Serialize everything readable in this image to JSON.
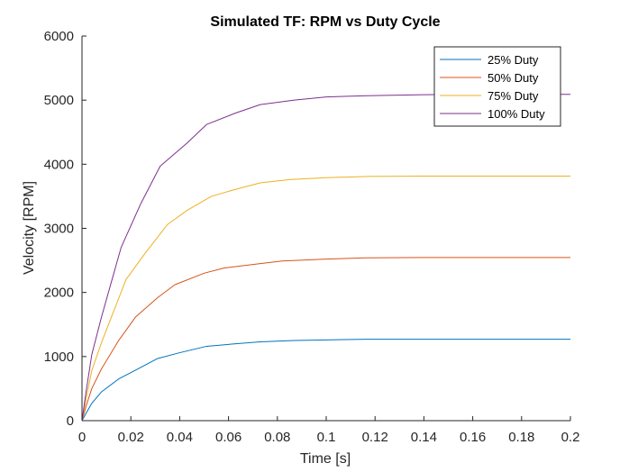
{
  "chart_data": {
    "type": "line",
    "title": "Simulated TF: RPM vs Duty Cycle",
    "xlabel": "Time [s]",
    "ylabel": "Velocity [RPM]",
    "xlim": [
      0,
      0.2
    ],
    "ylim": [
      0,
      6000
    ],
    "x_ticks": [
      0,
      0.02,
      0.04,
      0.06,
      0.08,
      0.1,
      0.12,
      0.14,
      0.16,
      0.18,
      0.2
    ],
    "x_tick_labels": [
      "0",
      "0.02",
      "0.04",
      "0.06",
      "0.08",
      "0.1",
      "0.12",
      "0.14",
      "0.16",
      "0.18",
      "0.2"
    ],
    "y_ticks": [
      0,
      1000,
      2000,
      3000,
      4000,
      5000,
      6000
    ],
    "y_tick_labels": [
      "0",
      "1000",
      "2000",
      "3000",
      "4000",
      "5000",
      "6000"
    ],
    "grid": false,
    "legend_position": "top-right",
    "series": [
      {
        "name": "25% Duty",
        "color": "#0072BD",
        "x": [
          0,
          0.0016,
          0.004,
          0.008,
          0.015,
          0.022,
          0.031,
          0.04,
          0.051,
          0.063,
          0.073,
          0.087,
          0.1,
          0.117,
          0.14,
          0.16,
          0.18,
          0.2
        ],
        "y": [
          0,
          110,
          270,
          450,
          650,
          790,
          970,
          1060,
          1160,
          1200,
          1230,
          1250,
          1260,
          1270,
          1270,
          1270,
          1270,
          1270
        ]
      },
      {
        "name": "50% Duty",
        "color": "#D95319",
        "x": [
          0,
          0.0017,
          0.004,
          0.008,
          0.015,
          0.022,
          0.031,
          0.038,
          0.05,
          0.058,
          0.073,
          0.082,
          0.1,
          0.116,
          0.14,
          0.16,
          0.18,
          0.2
        ],
        "y": [
          0,
          230,
          500,
          810,
          1250,
          1620,
          1920,
          2120,
          2300,
          2380,
          2450,
          2490,
          2520,
          2540,
          2545,
          2545,
          2545,
          2545
        ]
      },
      {
        "name": "75% Duty",
        "color": "#EDB120",
        "x": [
          0,
          0.0017,
          0.004,
          0.008,
          0.018,
          0.026,
          0.035,
          0.043,
          0.053,
          0.063,
          0.073,
          0.085,
          0.1,
          0.117,
          0.14,
          0.16,
          0.18,
          0.2
        ],
        "y": [
          0,
          350,
          780,
          1220,
          2200,
          2620,
          3060,
          3280,
          3500,
          3610,
          3710,
          3760,
          3790,
          3810,
          3815,
          3815,
          3815,
          3815
        ]
      },
      {
        "name": "100% Duty",
        "color": "#7E2F8E",
        "x": [
          0,
          0.0017,
          0.004,
          0.008,
          0.016,
          0.024,
          0.032,
          0.043,
          0.051,
          0.063,
          0.073,
          0.087,
          0.1,
          0.117,
          0.14,
          0.16,
          0.18,
          0.2
        ],
        "y": [
          0,
          460,
          1030,
          1620,
          2700,
          3380,
          3970,
          4330,
          4620,
          4800,
          4930,
          5000,
          5050,
          5070,
          5085,
          5090,
          5090,
          5090
        ]
      }
    ]
  }
}
